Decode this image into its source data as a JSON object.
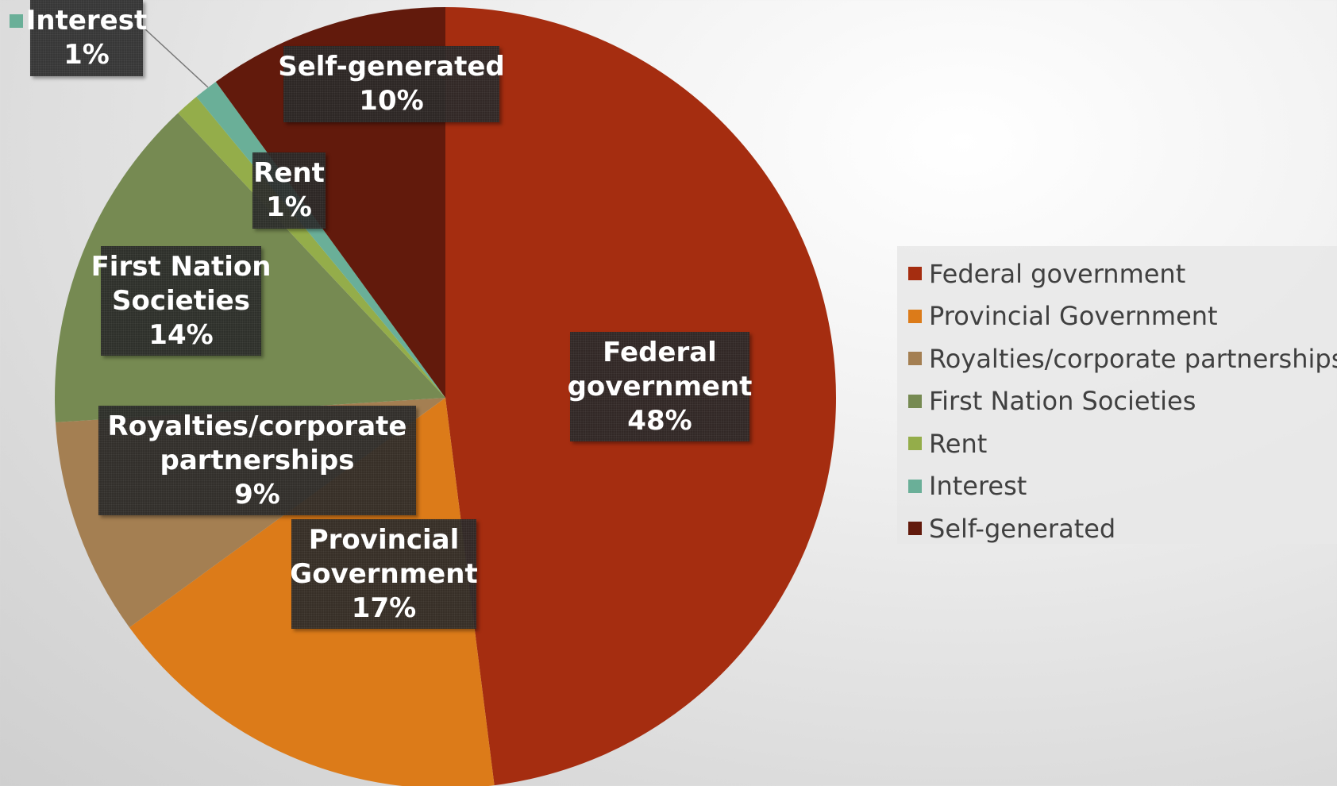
{
  "chart_data": {
    "type": "pie",
    "title": "",
    "slices": [
      {
        "label": "Federal government",
        "value": 48,
        "display": "48%",
        "color": "#a52d10"
      },
      {
        "label": "Provincial Government",
        "value": 17,
        "display": "17%",
        "color": "#dc7b19"
      },
      {
        "label": "Royalties/corporate partnerships",
        "value": 9,
        "display": "9%",
        "color": "#a47f52"
      },
      {
        "label": "First Nation Societies",
        "value": 14,
        "display": "14%",
        "color": "#768a52"
      },
      {
        "label": "Rent",
        "value": 1,
        "display": "1%",
        "color": "#94ad4a"
      },
      {
        "label": "Interest",
        "value": 1,
        "display": "1%",
        "color": "#6aaf98"
      },
      {
        "label": "Self-generated",
        "value": 10,
        "display": "10%",
        "color": "#621a0c"
      }
    ],
    "data_labels": [
      {
        "lines": [
          "Federal",
          "government",
          "48%"
        ]
      },
      {
        "lines": [
          "Provincial",
          "Government",
          "17%"
        ]
      },
      {
        "lines": [
          "Royalties/corporate",
          "partnerships",
          "9%"
        ]
      },
      {
        "lines": [
          "First Nation",
          "Societies",
          "14%"
        ]
      },
      {
        "lines": [
          "Rent",
          "1%"
        ]
      },
      {
        "lines": [
          "Interest",
          "1%"
        ]
      },
      {
        "lines": [
          "Self-generated",
          "10%"
        ]
      }
    ],
    "legend": {
      "position": "right"
    }
  }
}
